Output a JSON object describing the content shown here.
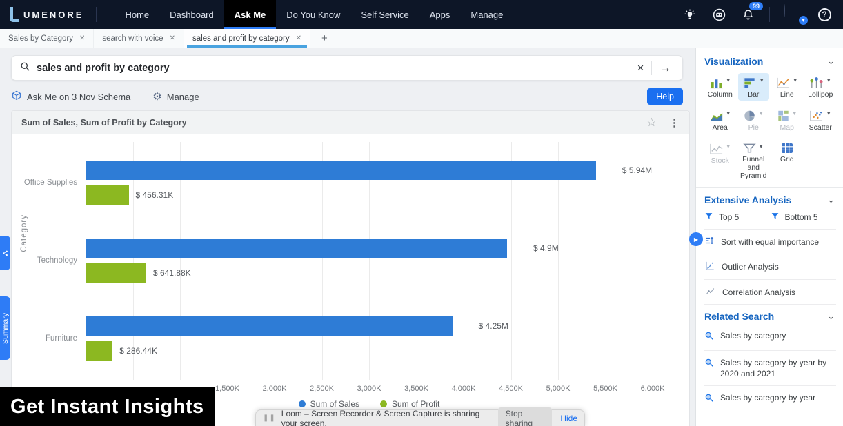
{
  "navbar": {
    "logo_text": "UMENORE",
    "items": [
      {
        "label": "Home",
        "active": false
      },
      {
        "label": "Dashboard",
        "active": false
      },
      {
        "label": "Ask Me",
        "active": true
      },
      {
        "label": "Do You Know",
        "active": false
      },
      {
        "label": "Self Service",
        "active": false
      },
      {
        "label": "Apps",
        "active": false
      },
      {
        "label": "Manage",
        "active": false
      }
    ],
    "notification_count": "99"
  },
  "tabs": {
    "items": [
      {
        "label": "Sales by Category",
        "active": false
      },
      {
        "label": "search with voice",
        "active": false
      },
      {
        "label": "sales and profit by category",
        "active": true
      }
    ],
    "add_label": "+"
  },
  "search": {
    "value": "sales and profit by category"
  },
  "schema_bar": {
    "ask_me_label": "Ask Me on 3 Nov Schema",
    "manage_label": "Manage",
    "help_label": "Help"
  },
  "chart_card": {
    "title": "Sum of Sales, Sum of Profit by Category"
  },
  "chart_data": {
    "type": "bar",
    "orientation": "horizontal",
    "title": "Sum of Sales, Sum of Profit by Category",
    "categories": [
      "Office Supplies",
      "Technology",
      "Furniture"
    ],
    "series": [
      {
        "name": "Sum of Sales",
        "color": "#2e7cd6",
        "values_k": [
          5940,
          4900,
          4250
        ],
        "labels": [
          "$ 5.94M",
          "$ 4.9M",
          "$ 4.25M"
        ]
      },
      {
        "name": "Sum of Profit",
        "color": "#8cb821",
        "values_k": [
          456.31,
          641.88,
          286.44
        ],
        "labels": [
          "$ 456.31K",
          "$ 641.88K",
          "$ 286.44K"
        ]
      }
    ],
    "xlabel": "",
    "ylabel": "Category",
    "xlim_k": [
      0,
      6000
    ],
    "x_ticks": [
      {
        "value_k": 1500,
        "label": "1,500K"
      },
      {
        "value_k": 2000,
        "label": "2,000K"
      },
      {
        "value_k": 2500,
        "label": "2,500K"
      },
      {
        "value_k": 3000,
        "label": "3,000K"
      },
      {
        "value_k": 3500,
        "label": "3,500K"
      },
      {
        "value_k": 4000,
        "label": "4,000K"
      },
      {
        "value_k": 4500,
        "label": "4,500K"
      },
      {
        "value_k": 5000,
        "label": "5,000K"
      },
      {
        "value_k": 5500,
        "label": "5,500K"
      },
      {
        "value_k": 6000,
        "label": "6,000K"
      }
    ],
    "grid": true,
    "legend_position": "bottom",
    "sales_display_k": [
      5400,
      4460,
      3880
    ]
  },
  "left_rail": {
    "summary_label": "Summary"
  },
  "sidebar": {
    "visualization": {
      "title": "Visualization",
      "items": [
        {
          "label": "Column",
          "icon": "column",
          "selected": false,
          "disabled": false,
          "caret": true
        },
        {
          "label": "Bar",
          "icon": "bar",
          "selected": true,
          "disabled": false,
          "caret": true
        },
        {
          "label": "Line",
          "icon": "line",
          "selected": false,
          "disabled": false,
          "caret": true
        },
        {
          "label": "Lollipop",
          "icon": "lollipop",
          "selected": false,
          "disabled": false,
          "caret": true
        },
        {
          "label": "Area",
          "icon": "area",
          "selected": false,
          "disabled": false,
          "caret": true
        },
        {
          "label": "Pie",
          "icon": "pie",
          "selected": false,
          "disabled": true,
          "caret": true
        },
        {
          "label": "Map",
          "icon": "map",
          "selected": false,
          "disabled": true,
          "caret": true
        },
        {
          "label": "Scatter",
          "icon": "scatter",
          "selected": false,
          "disabled": false,
          "caret": true
        },
        {
          "label": "Stock",
          "icon": "stock",
          "selected": false,
          "disabled": true,
          "caret": true
        },
        {
          "label": "Funnel and Pyramid",
          "icon": "funnel-pyramid",
          "selected": false,
          "disabled": false,
          "caret": true
        },
        {
          "label": "Grid",
          "icon": "grid",
          "selected": false,
          "disabled": false,
          "caret": false
        }
      ]
    },
    "extensive_analysis": {
      "title": "Extensive Analysis",
      "top_label": "Top 5",
      "bottom_label": "Bottom 5",
      "items": [
        {
          "label": "Sort with equal importance",
          "icon": "sort"
        },
        {
          "label": "Outlier Analysis",
          "icon": "outlier"
        },
        {
          "label": "Correlation Analysis",
          "icon": "correlation"
        }
      ]
    },
    "related_search": {
      "title": "Related Search",
      "items": [
        "Sales by category",
        "Sales by category by year by 2020 and 2021",
        "Sales by category by year"
      ]
    }
  },
  "banner": {
    "text": "Get Instant Insights"
  },
  "loom_bar": {
    "message": "Loom – Screen Recorder & Screen Capture is sharing your screen.",
    "stop_label": "Stop sharing",
    "hide_label": "Hide"
  }
}
